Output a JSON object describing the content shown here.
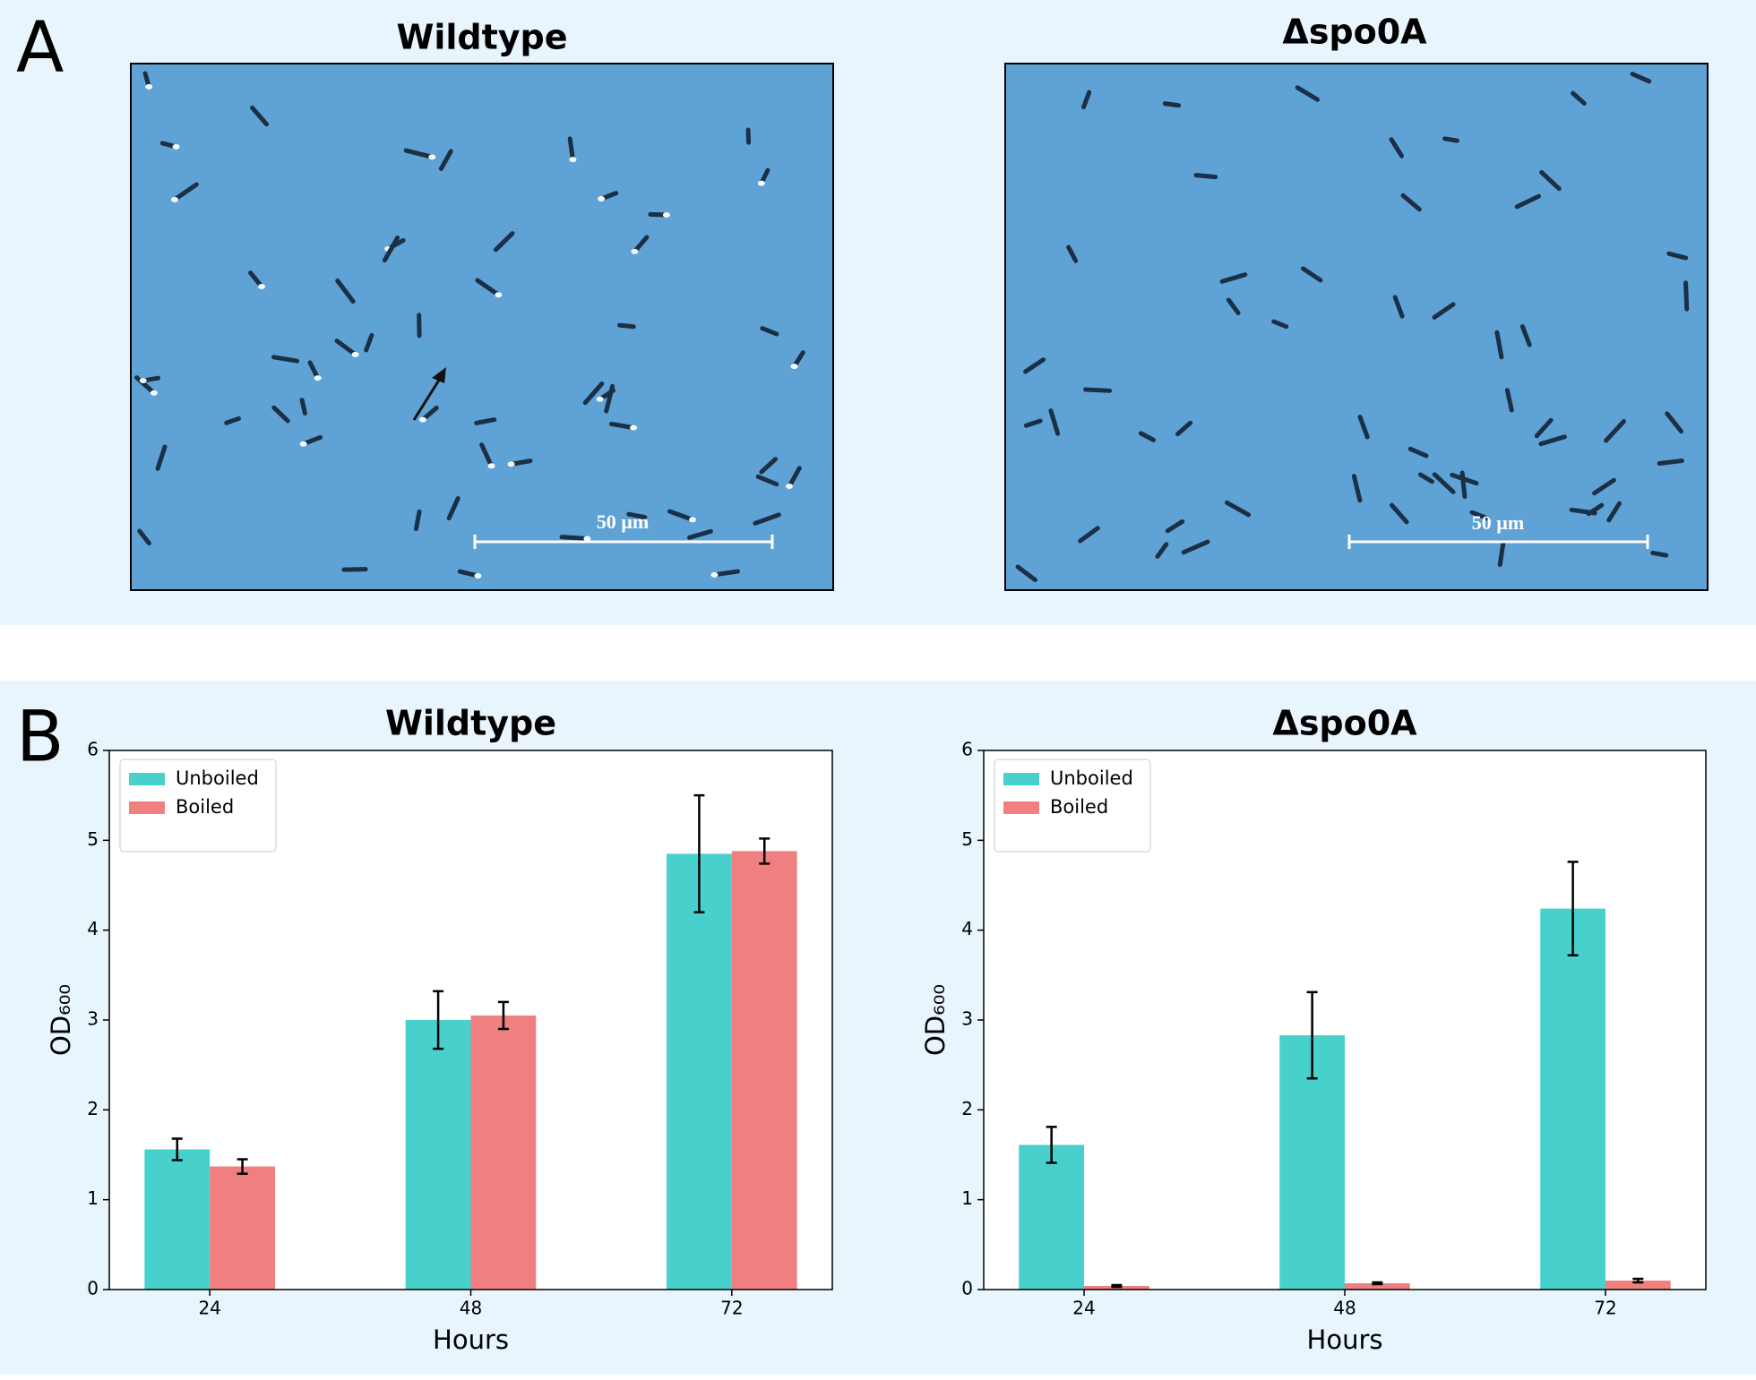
{
  "panels": [
    {
      "label": "A",
      "images": [
        {
          "title": "Wildtype",
          "scale_bar": "50 µm"
        },
        {
          "title": "Δspo0A",
          "scale_bar": "50 µm"
        }
      ]
    },
    {
      "label": "B"
    }
  ],
  "chart_data": [
    {
      "type": "bar",
      "title": "Wildtype",
      "x_label": "Hours",
      "y_label": "OD₆₀₀",
      "categories": [
        "24",
        "48",
        "72"
      ],
      "series": [
        {
          "name": "Unboiled",
          "color": "#48d1cc",
          "values": [
            1.56,
            3.0,
            4.85
          ],
          "errors": [
            0.12,
            0.32,
            0.65
          ]
        },
        {
          "name": "Boiled",
          "color": "#f08080",
          "values": [
            1.37,
            3.05,
            4.88
          ],
          "errors": [
            0.08,
            0.15,
            0.14
          ]
        }
      ],
      "ylim": [
        0,
        6
      ],
      "yticks": [
        0,
        1,
        2,
        3,
        4,
        5,
        6
      ],
      "legend": "upper left"
    },
    {
      "type": "bar",
      "title": "Δspo0A",
      "x_label": "Hours",
      "y_label": "OD₆₀₀",
      "categories": [
        "24",
        "48",
        "72"
      ],
      "series": [
        {
          "name": "Unboiled",
          "color": "#48d1cc",
          "values": [
            1.61,
            2.83,
            4.24
          ],
          "errors": [
            0.2,
            0.48,
            0.52
          ]
        },
        {
          "name": "Boiled",
          "color": "#f08080",
          "values": [
            0.04,
            0.07,
            0.1
          ],
          "errors": [
            0.01,
            0.01,
            0.02
          ]
        }
      ],
      "ylim": [
        0,
        6
      ],
      "yticks": [
        0,
        1,
        2,
        3,
        4,
        5,
        6
      ],
      "legend": "upper left"
    }
  ]
}
